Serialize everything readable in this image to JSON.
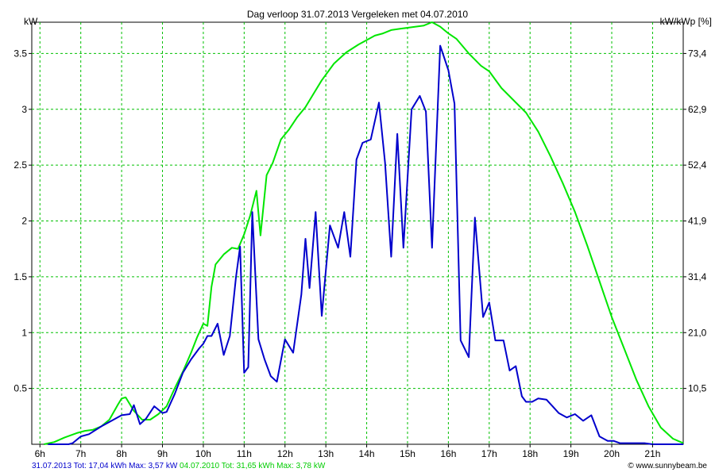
{
  "chart_data": {
    "type": "line",
    "title": "Dag  verloop 31.07.2013   Vergeleken met 04.07.2010",
    "ylabel_left": "kW",
    "ylabel_right": "kW/kWp [%]",
    "x_ticks": [
      "6h",
      "7h",
      "8h",
      "9h",
      "10h",
      "11h",
      "12h",
      "13h",
      "14h",
      "15h",
      "16h",
      "17h",
      "18h",
      "19h",
      "20h",
      "21h"
    ],
    "y_ticks_left": [
      "0.5",
      "1",
      "1.5",
      "2",
      "2.5",
      "3",
      "3.5"
    ],
    "y_ticks_right": [
      "10,5",
      "21,0",
      "31,4",
      "41,9",
      "52,4",
      "62,9",
      "73,4"
    ],
    "xlim": [
      5.8,
      21.75
    ],
    "ylim": [
      0,
      3.78
    ],
    "grid": true,
    "series": [
      {
        "name": "31.07.2013",
        "color": "#0000cc",
        "x": [
          6.2,
          6.7,
          6.8,
          7.0,
          7.2,
          7.5,
          7.7,
          8.0,
          8.2,
          8.3,
          8.45,
          8.6,
          8.8,
          9.0,
          9.1,
          9.3,
          9.5,
          9.7,
          9.9,
          10.0,
          10.1,
          10.2,
          10.35,
          10.5,
          10.65,
          10.8,
          10.9,
          11.0,
          11.1,
          11.2,
          11.35,
          11.5,
          11.65,
          11.8,
          12.0,
          12.2,
          12.4,
          12.5,
          12.6,
          12.75,
          12.9,
          13.1,
          13.3,
          13.45,
          13.6,
          13.75,
          13.9,
          14.1,
          14.3,
          14.45,
          14.6,
          14.75,
          14.9,
          15.1,
          15.3,
          15.45,
          15.6,
          15.8,
          16.0,
          16.15,
          16.3,
          16.5,
          16.65,
          16.85,
          17.0,
          17.15,
          17.35,
          17.5,
          17.65,
          17.8,
          17.9,
          18.05,
          18.2,
          18.4,
          18.55,
          18.7,
          18.9,
          19.1,
          19.3,
          19.5,
          19.7,
          19.9,
          20.05,
          20.2,
          20.35,
          20.5,
          20.65,
          20.8,
          21.0,
          21.3,
          21.75
        ],
        "values": [
          0,
          0,
          0.01,
          0.07,
          0.09,
          0.16,
          0.2,
          0.26,
          0.27,
          0.35,
          0.18,
          0.23,
          0.34,
          0.28,
          0.29,
          0.45,
          0.64,
          0.76,
          0.86,
          0.9,
          0.97,
          0.97,
          1.08,
          0.8,
          0.97,
          1.5,
          1.77,
          0.64,
          0.69,
          2.08,
          0.94,
          0.76,
          0.61,
          0.56,
          0.94,
          0.82,
          1.34,
          1.84,
          1.4,
          2.08,
          1.15,
          1.96,
          1.76,
          2.08,
          1.68,
          2.55,
          2.7,
          2.73,
          3.06,
          2.52,
          1.68,
          2.78,
          1.76,
          3.0,
          3.12,
          2.98,
          1.76,
          3.57,
          3.35,
          3.05,
          0.93,
          0.78,
          2.03,
          1.14,
          1.27,
          0.93,
          0.93,
          0.66,
          0.7,
          0.43,
          0.38,
          0.38,
          0.41,
          0.4,
          0.34,
          0.28,
          0.24,
          0.27,
          0.21,
          0.26,
          0.07,
          0.03,
          0.03,
          0.01,
          0.01,
          0.01,
          0.01,
          0.01,
          0,
          0,
          0
        ]
      },
      {
        "name": "04.07.2010",
        "color": "#00e600",
        "x": [
          6.1,
          6.35,
          6.6,
          6.9,
          7.1,
          7.3,
          7.5,
          7.7,
          7.9,
          8.0,
          8.1,
          8.3,
          8.5,
          8.7,
          8.9,
          9.1,
          9.3,
          9.5,
          9.7,
          9.85,
          10.0,
          10.1,
          10.2,
          10.3,
          10.5,
          10.7,
          10.85,
          11.0,
          11.15,
          11.3,
          11.4,
          11.55,
          11.7,
          11.9,
          12.1,
          12.3,
          12.5,
          12.7,
          12.9,
          13.2,
          13.5,
          13.8,
          14.0,
          14.2,
          14.4,
          14.6,
          14.8,
          15.0,
          15.2,
          15.4,
          15.6,
          15.8,
          16.0,
          16.2,
          16.5,
          16.8,
          17.0,
          17.3,
          17.6,
          17.9,
          18.2,
          18.5,
          18.8,
          19.1,
          19.4,
          19.7,
          20.0,
          20.3,
          20.6,
          20.9,
          21.2,
          21.5,
          21.75
        ],
        "values": [
          0,
          0.02,
          0.06,
          0.1,
          0.12,
          0.13,
          0.16,
          0.22,
          0.35,
          0.41,
          0.42,
          0.3,
          0.22,
          0.22,
          0.27,
          0.34,
          0.5,
          0.65,
          0.82,
          0.96,
          1.08,
          1.06,
          1.41,
          1.61,
          1.7,
          1.76,
          1.75,
          1.88,
          2.05,
          2.27,
          1.87,
          2.41,
          2.52,
          2.73,
          2.82,
          2.93,
          3.02,
          3.14,
          3.26,
          3.41,
          3.51,
          3.58,
          3.62,
          3.66,
          3.68,
          3.71,
          3.72,
          3.73,
          3.74,
          3.75,
          3.78,
          3.74,
          3.68,
          3.63,
          3.5,
          3.39,
          3.34,
          3.19,
          3.08,
          2.97,
          2.8,
          2.58,
          2.34,
          2.08,
          1.78,
          1.46,
          1.14,
          0.86,
          0.58,
          0.34,
          0.15,
          0.05,
          0.01
        ]
      }
    ]
  },
  "footer": {
    "series1_text": "31.07.2013 Tot: 17,04 kWh Max: 3,57 kW",
    "series2_text": " 04.07.2010 Tot: 31,65 kWh Max: 3,78 kW",
    "credit": "© www.sunnybeam.be"
  }
}
